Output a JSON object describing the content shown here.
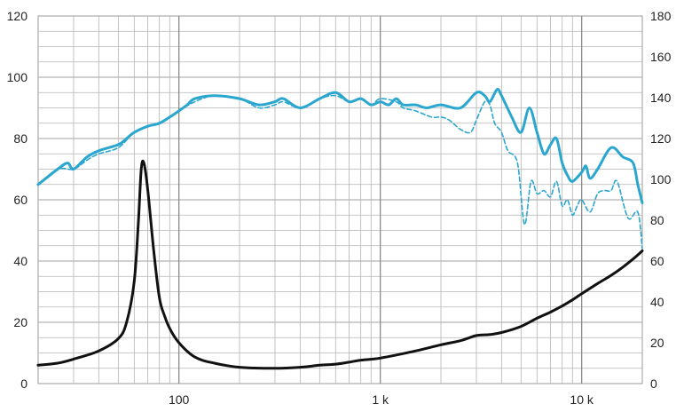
{
  "chart_data": {
    "type": "line",
    "title": "",
    "xlabel": "",
    "ylabel": "",
    "x_scale": "log",
    "xlim": [
      20,
      20000
    ],
    "ylim_left": [
      0,
      120
    ],
    "ylim_right": [
      0,
      180
    ],
    "grid": true,
    "legend": "none",
    "x_tick_labels": [
      {
        "value": 100,
        "label": "100"
      },
      {
        "value": 1000,
        "label": "1 k"
      },
      {
        "value": 10000,
        "label": "10 k"
      }
    ],
    "y_left_ticks": [
      "0",
      "20",
      "40",
      "60",
      "80",
      "100",
      "120"
    ],
    "y_right_ticks": [
      "0",
      "20",
      "40",
      "60",
      "80",
      "100",
      "120",
      "140",
      "160",
      "180"
    ],
    "series": [
      {
        "axis": "left",
        "color": "#2aa6cf",
        "style": "solid",
        "points": [
          [
            20,
            65
          ],
          [
            25,
            70
          ],
          [
            28,
            72
          ],
          [
            30,
            70
          ],
          [
            35,
            74
          ],
          [
            40,
            76
          ],
          [
            50,
            78
          ],
          [
            55,
            80
          ],
          [
            60,
            82
          ],
          [
            70,
            84
          ],
          [
            80,
            85
          ],
          [
            90,
            87
          ],
          [
            100,
            89
          ],
          [
            110,
            91
          ],
          [
            120,
            93
          ],
          [
            150,
            94
          ],
          [
            200,
            93
          ],
          [
            250,
            91
          ],
          [
            300,
            92
          ],
          [
            330,
            93
          ],
          [
            400,
            90
          ],
          [
            500,
            93
          ],
          [
            600,
            95
          ],
          [
            700,
            92
          ],
          [
            800,
            93
          ],
          [
            900,
            91
          ],
          [
            1000,
            92
          ],
          [
            1100,
            91
          ],
          [
            1200,
            93
          ],
          [
            1300,
            91
          ],
          [
            1500,
            91
          ],
          [
            1700,
            90
          ],
          [
            2000,
            91
          ],
          [
            2500,
            90
          ],
          [
            3000,
            95
          ],
          [
            3300,
            94
          ],
          [
            3500,
            92
          ],
          [
            3800,
            96
          ],
          [
            4000,
            94
          ],
          [
            4500,
            87
          ],
          [
            5000,
            82
          ],
          [
            5500,
            90
          ],
          [
            6000,
            82
          ],
          [
            6500,
            75
          ],
          [
            7000,
            78
          ],
          [
            7500,
            80
          ],
          [
            8000,
            72
          ],
          [
            8500,
            68
          ],
          [
            9000,
            66
          ],
          [
            10000,
            69
          ],
          [
            10500,
            71
          ],
          [
            11000,
            67
          ],
          [
            12000,
            70
          ],
          [
            14000,
            77
          ],
          [
            16000,
            74
          ],
          [
            18000,
            72
          ],
          [
            19000,
            65
          ],
          [
            20000,
            59
          ]
        ]
      },
      {
        "axis": "left",
        "color": "#2aa6cf",
        "style": "dashed",
        "points": [
          [
            20,
            65
          ],
          [
            25,
            70
          ],
          [
            30,
            70
          ],
          [
            35,
            73
          ],
          [
            40,
            75
          ],
          [
            50,
            77
          ],
          [
            60,
            82
          ],
          [
            70,
            84
          ],
          [
            80,
            85
          ],
          [
            100,
            89
          ],
          [
            120,
            92
          ],
          [
            150,
            94
          ],
          [
            200,
            93
          ],
          [
            250,
            90
          ],
          [
            300,
            91
          ],
          [
            330,
            92
          ],
          [
            400,
            90
          ],
          [
            500,
            93
          ],
          [
            600,
            94
          ],
          [
            700,
            92
          ],
          [
            800,
            93
          ],
          [
            900,
            91
          ],
          [
            1000,
            93
          ],
          [
            1200,
            92
          ],
          [
            1300,
            90
          ],
          [
            1500,
            89
          ],
          [
            1800,
            87
          ],
          [
            2000,
            87
          ],
          [
            2200,
            86
          ],
          [
            2500,
            83
          ],
          [
            2800,
            82
          ],
          [
            3000,
            86
          ],
          [
            3300,
            92
          ],
          [
            3500,
            91
          ],
          [
            3700,
            85
          ],
          [
            4000,
            82
          ],
          [
            4300,
            76
          ],
          [
            4800,
            72
          ],
          [
            5200,
            52
          ],
          [
            5600,
            66
          ],
          [
            6000,
            62
          ],
          [
            6500,
            63
          ],
          [
            7000,
            61
          ],
          [
            7500,
            66
          ],
          [
            8000,
            58
          ],
          [
            8500,
            60
          ],
          [
            9000,
            55
          ],
          [
            9500,
            58
          ],
          [
            10000,
            60
          ],
          [
            11000,
            56
          ],
          [
            12000,
            62
          ],
          [
            13000,
            63
          ],
          [
            14000,
            63
          ],
          [
            15000,
            66
          ],
          [
            17000,
            54
          ],
          [
            19000,
            56
          ],
          [
            20000,
            44
          ]
        ]
      },
      {
        "axis": "right",
        "color": "#111111",
        "style": "solid",
        "points": [
          [
            20,
            9
          ],
          [
            25,
            10
          ],
          [
            30,
            12
          ],
          [
            40,
            16
          ],
          [
            50,
            22
          ],
          [
            55,
            30
          ],
          [
            60,
            50
          ],
          [
            63,
            80
          ],
          [
            65,
            105
          ],
          [
            67,
            108
          ],
          [
            70,
            95
          ],
          [
            75,
            65
          ],
          [
            80,
            42
          ],
          [
            85,
            33
          ],
          [
            90,
            27
          ],
          [
            100,
            20
          ],
          [
            120,
            13
          ],
          [
            150,
            10
          ],
          [
            200,
            8
          ],
          [
            300,
            7.5
          ],
          [
            400,
            8
          ],
          [
            500,
            9
          ],
          [
            600,
            9.5
          ],
          [
            700,
            10.5
          ],
          [
            800,
            11.5
          ],
          [
            1000,
            12.5
          ],
          [
            1500,
            16
          ],
          [
            2000,
            19
          ],
          [
            2500,
            21
          ],
          [
            3000,
            23.5
          ],
          [
            3500,
            24
          ],
          [
            4000,
            25
          ],
          [
            5000,
            28
          ],
          [
            6000,
            32
          ],
          [
            7000,
            35
          ],
          [
            8000,
            38
          ],
          [
            9000,
            41
          ],
          [
            10000,
            44
          ],
          [
            12000,
            49
          ],
          [
            14000,
            53
          ],
          [
            16000,
            57
          ],
          [
            18000,
            61
          ],
          [
            20000,
            65
          ]
        ]
      }
    ]
  }
}
